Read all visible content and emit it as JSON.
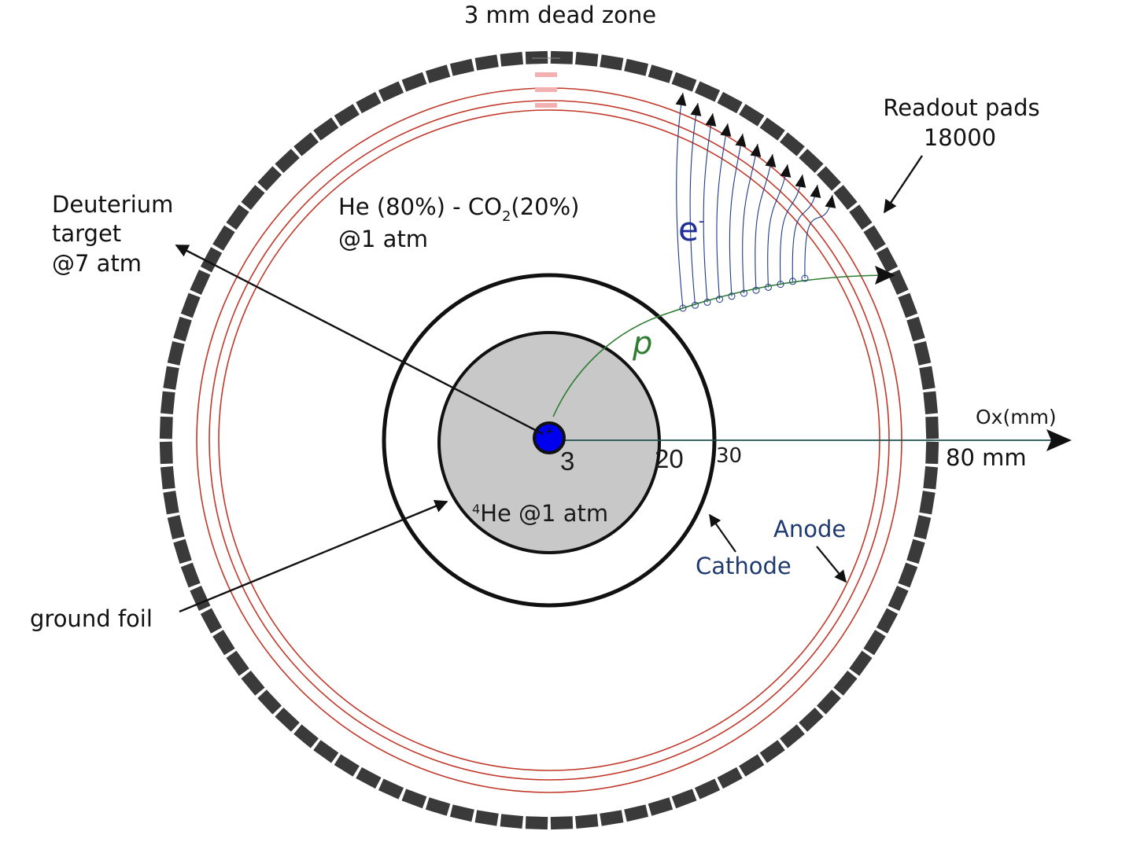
{
  "title": "3 mm dead zone",
  "labels": {
    "readout_pads_line1": "Readout pads",
    "readout_pads_line2": "18000",
    "deuterium_line1": "Deuterium",
    "deuterium_line2": "target",
    "deuterium_line3": "@7 atm",
    "gas_mix_line1_a": "He (80%) - CO",
    "gas_mix_line1_sub": "2",
    "gas_mix_line1_b": "(20%)",
    "gas_mix_line2": "@1 atm",
    "electron": "e",
    "electron_sup": "-",
    "proton": "p",
    "he4_sup": "4",
    "he4_text": "He @1 atm",
    "axis_label": "Ox(mm)",
    "r_3": "3",
    "r_20": "20",
    "r_30": "30",
    "r_80": "80 mm",
    "anode": "Anode",
    "cathode": "Cathode",
    "ground_foil": "ground foil"
  },
  "colors": {
    "pads": "#3a3a3a",
    "anode_rings": "#c0392b",
    "drift_lines": "#1f3a8a",
    "proton_track": "#2e7d32",
    "target": "#0000ee",
    "he4_region": "#c8c8c8",
    "axis": "#1f4f4f"
  }
}
